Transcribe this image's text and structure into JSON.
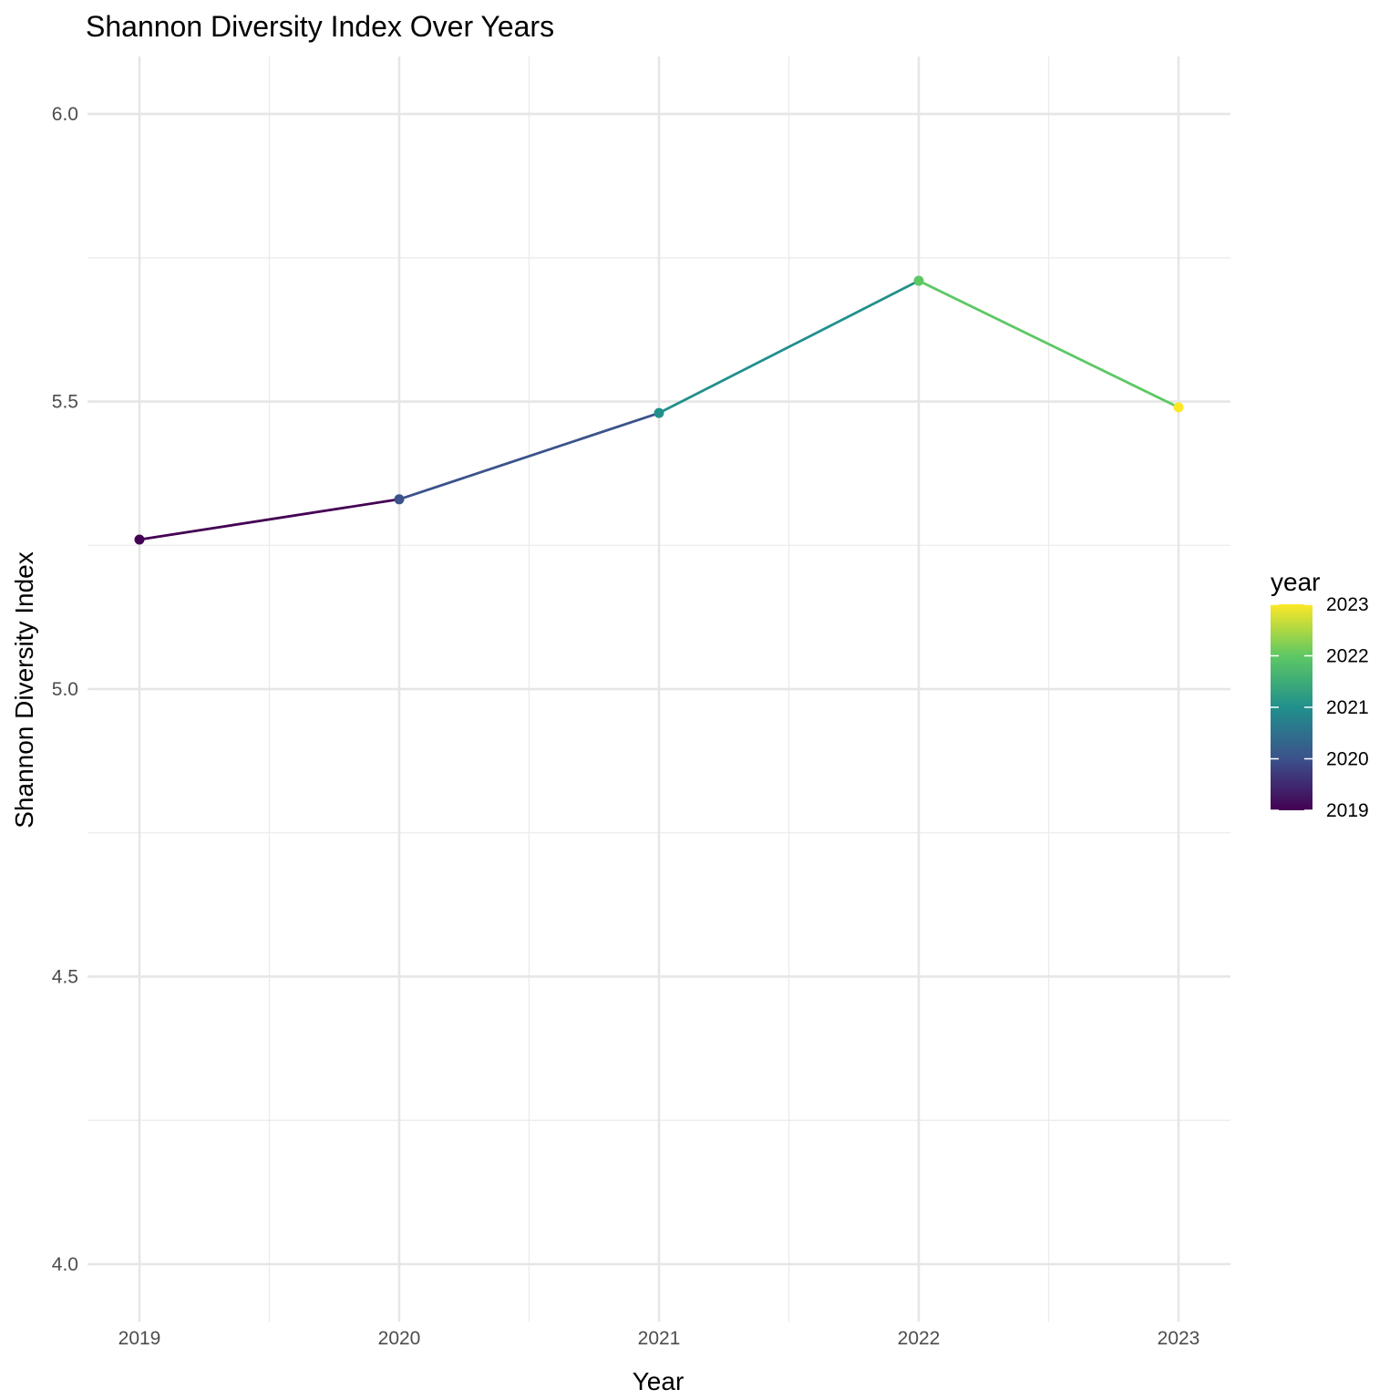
{
  "chart_data": {
    "type": "line",
    "title": "Shannon Diversity Index Over Years",
    "xlabel": "Year",
    "ylabel": "Shannon Diversity Index",
    "x": [
      2019,
      2020,
      2021,
      2022,
      2023
    ],
    "y": [
      5.26,
      5.33,
      5.48,
      5.71,
      5.49
    ],
    "xlim": [
      2018.8,
      2023.2
    ],
    "ylim": [
      3.9,
      6.1
    ],
    "x_ticks": [
      "2019",
      "2020",
      "2021",
      "2022",
      "2023"
    ],
    "y_ticks": [
      "4.0",
      "4.5",
      "5.0",
      "5.5",
      "6.0"
    ],
    "grid": true,
    "color_scale": {
      "name": "viridis",
      "variable": "year",
      "range": [
        2019,
        2023
      ],
      "colors": [
        "#440154",
        "#3b528b",
        "#21908c",
        "#5dc863",
        "#fde725"
      ]
    },
    "legend": {
      "title": "year",
      "placement": "right",
      "labels": [
        "2023",
        "2022",
        "2021",
        "2020",
        "2019"
      ]
    }
  }
}
